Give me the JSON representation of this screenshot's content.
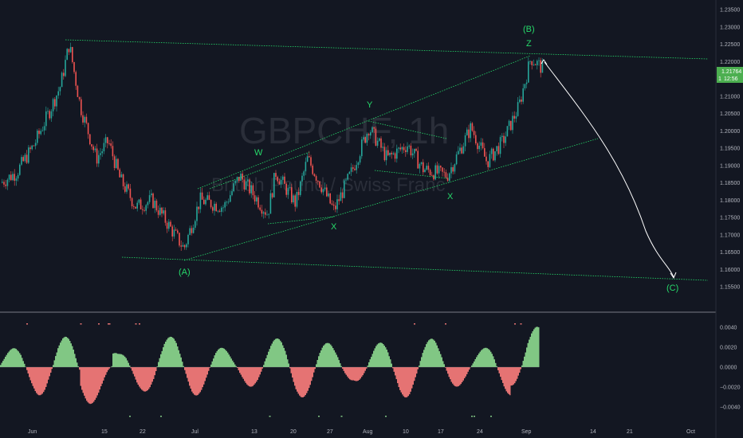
{
  "symbol": {
    "ticker": "GBPCHF, 1h",
    "name": "British Pound / Swiss Franc"
  },
  "price_axis": {
    "ticks": [
      "1.23500",
      "1.23000",
      "1.22500",
      "1.22000",
      "1.21500",
      "1.21000",
      "1.20500",
      "1.20000",
      "1.19500",
      "1.19000",
      "1.18500",
      "1.18000",
      "1.17500",
      "1.17000",
      "1.16500",
      "1.16000",
      "1.15500"
    ],
    "last_price": "1.21764",
    "countdown": "12:56",
    "countdown_prefix": "1"
  },
  "oscillator_axis": {
    "ticks": [
      "0.0040",
      "0.0020",
      "0.0000",
      "−0.0020",
      "−0.0040"
    ]
  },
  "time_axis": {
    "ticks": [
      "Jun",
      "15",
      "22",
      "Jul",
      "13",
      "20",
      "27",
      "Aug",
      "10",
      "17",
      "24",
      "Sep",
      "14",
      "21",
      "Oct"
    ]
  },
  "wave_labels": {
    "A": "(A)",
    "B": "(B)",
    "C": "(C)",
    "W": "W",
    "X1": "X",
    "Y": "Y",
    "X2": "X",
    "Z": "Z"
  },
  "colors": {
    "background": "#131722",
    "up": "#26a69a",
    "down": "#ef5350",
    "trendline": "#26d96a",
    "price_tag": "#4caf50",
    "hist_up": "#81c784",
    "hist_down": "#e57373",
    "projection": "#ffffff"
  },
  "chart_data": {
    "type": "candlestick",
    "price_ylim": [
      1.155,
      1.235
    ],
    "price_path": [
      {
        "t": "May 31",
        "p": 1.185
      },
      {
        "t": "Jun 2",
        "p": 1.188
      },
      {
        "t": "Jun 4",
        "p": 1.196
      },
      {
        "t": "Jun 6",
        "p": 1.205
      },
      {
        "t": "Jun 8",
        "p": 1.213
      },
      {
        "t": "Jun 10",
        "p": 1.225
      },
      {
        "t": "Jun 12",
        "p": 1.207
      },
      {
        "t": "Jun 15",
        "p": 1.192
      },
      {
        "t": "Jun 17",
        "p": 1.197
      },
      {
        "t": "Jun 19",
        "p": 1.186
      },
      {
        "t": "Jun 22",
        "p": 1.178
      },
      {
        "t": "Jun 25",
        "p": 1.18
      },
      {
        "t": "Jun 28",
        "p": 1.166
      },
      {
        "t": "Jul 1",
        "p": 1.18
      },
      {
        "t": "Jul 6",
        "p": 1.178
      },
      {
        "t": "Jul 10",
        "p": 1.187
      },
      {
        "t": "Jul 14",
        "p": 1.176
      },
      {
        "t": "Jul 17",
        "p": 1.188
      },
      {
        "t": "Jul 21",
        "p": 1.179
      },
      {
        "t": "Jul 24",
        "p": 1.192
      },
      {
        "t": "Jul 27",
        "p": 1.177
      },
      {
        "t": "Jul 31",
        "p": 1.188
      },
      {
        "t": "Aug 3",
        "p": 1.201
      },
      {
        "t": "Aug 6",
        "p": 1.192
      },
      {
        "t": "Aug 10",
        "p": 1.196
      },
      {
        "t": "Aug 13",
        "p": 1.189
      },
      {
        "t": "Aug 17",
        "p": 1.187
      },
      {
        "t": "Aug 20",
        "p": 1.201
      },
      {
        "t": "Aug 24",
        "p": 1.191
      },
      {
        "t": "Aug 27",
        "p": 1.197
      },
      {
        "t": "Aug 31",
        "p": 1.207
      },
      {
        "t": "Sep 2",
        "p": 1.221
      },
      {
        "t": "Sep 3",
        "p": 1.218
      }
    ],
    "oscillator_ylim": [
      -0.005,
      0.005
    ],
    "wave_points": [
      {
        "label": "(A)",
        "date": "Jun 29",
        "price": 1.1632
      },
      {
        "label": "W",
        "date": "Jul 13",
        "price": 1.192
      },
      {
        "label": "X",
        "date": "Jul 27",
        "price": 1.175
      },
      {
        "label": "Y",
        "date": "Aug 3",
        "price": 1.204
      },
      {
        "label": "X",
        "date": "Aug 18",
        "price": 1.186
      },
      {
        "label": "Z",
        "date": "Sep 2",
        "price": 1.2218
      },
      {
        "label": "(B)",
        "date": "Sep 2",
        "price": 1.2218
      },
      {
        "label": "(C)",
        "date": "Oct 1",
        "price": 1.1582
      }
    ]
  }
}
